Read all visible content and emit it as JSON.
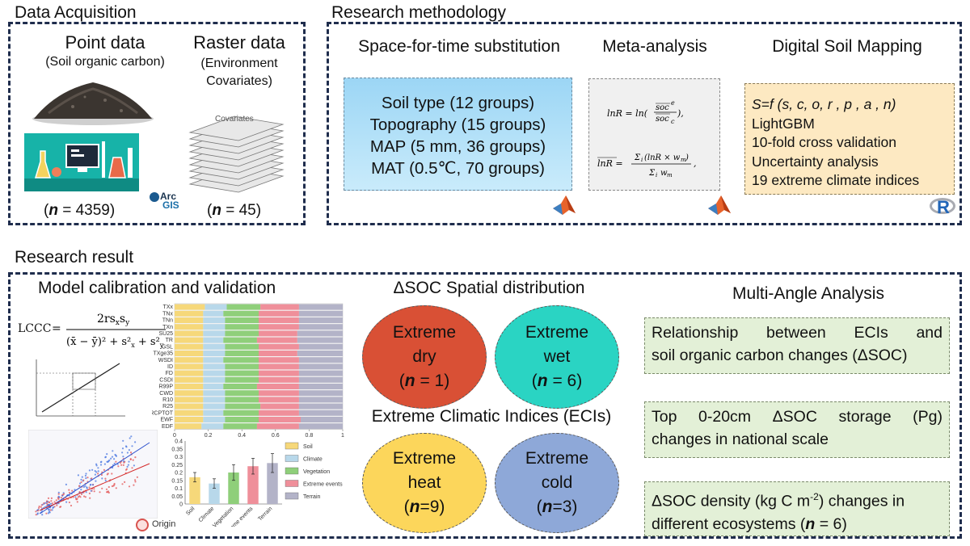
{
  "acquisition": {
    "title": "Data Acquisition",
    "point_title": "Point data",
    "point_sub": "(Soil organic carbon)",
    "point_n": "= 4359)",
    "raster_title": "Raster data",
    "raster_sub1": "(Environment",
    "raster_sub2": "Covariates)",
    "raster_n": "= 45)",
    "covariates_label": "Covariates",
    "arcgis_arc": "Arc",
    "arcgis_gis": "GIS"
  },
  "methodology": {
    "title": "Research methodology",
    "sft_title": "Space-for-time substitution",
    "sft_lines": [
      "Soil type (12 groups)",
      "Topography (15 groups)",
      "MAP (5 mm, 36 groups)",
      "MAT (0.5℃, 70 groups)"
    ],
    "meta_title": "Meta-analysis",
    "dsm_title": "Digital Soil Mapping",
    "dsm_formula": "S=f (s, c, o, r , p , a , n)",
    "dsm_lines": [
      "LightGBM",
      "10-fold cross validation",
      "Uncertainty analysis",
      "19 extreme climate indices"
    ],
    "r_logo": "R"
  },
  "result": {
    "title": "Research result",
    "model_title": "Model calibration and validation",
    "lccc_label": "LCCC",
    "origin_label": "Origin",
    "spatial_title": "ΔSOC Spatial distribution",
    "eci_title": "Extreme Climatic Indices (ECIs)",
    "circles": [
      {
        "l1": "Extreme",
        "l2": "dry",
        "n": "= 1)"
      },
      {
        "l1": "Extreme",
        "l2": "wet",
        "n": "= 6)"
      },
      {
        "l1": "Extreme",
        "l2": "heat",
        "n": "=9)"
      },
      {
        "l1": "Extreme",
        "l2": "cold",
        "n": "=3)"
      }
    ],
    "multi_title": "Multi-Angle Analysis",
    "boxes": [
      {
        "l1": "Relationship between ECIs and",
        "l2": "soil organic carbon changes (ΔSOC)"
      },
      {
        "l1": "Top 0-20cm ΔSOC storage (Pg)",
        "l2": "changes in national scale"
      },
      {
        "l1a": "ΔSOC density (kg C m",
        "sup": "-2",
        "l1b": ") changes in",
        "l2": "different ecosystems (",
        "n": "= 6)"
      }
    ]
  },
  "chart_data": [
    {
      "type": "bar",
      "orientation": "horizontal",
      "stacked": true,
      "categories": [
        "TXx",
        "TNx",
        "TNn",
        "TXn",
        "SU25",
        "TR",
        "GSL",
        "TXge35",
        "WSDI",
        "ID",
        "FD",
        "CSDI",
        "R99P",
        "CWD",
        "R10",
        "R25",
        "PRCPTOT",
        "EWF",
        "EDF"
      ],
      "series_names": [
        "Soil",
        "Climate",
        "Vegetation",
        "Extreme events",
        "Terrain"
      ],
      "series": [
        {
          "name": "Soil",
          "values": [
            0.18,
            0.17,
            0.17,
            0.17,
            0.17,
            0.17,
            0.17,
            0.17,
            0.17,
            0.17,
            0.17,
            0.17,
            0.17,
            0.17,
            0.17,
            0.17,
            0.17,
            0.17,
            0.16
          ]
        },
        {
          "name": "Climate",
          "values": [
            0.13,
            0.12,
            0.13,
            0.13,
            0.13,
            0.12,
            0.13,
            0.13,
            0.12,
            0.13,
            0.13,
            0.13,
            0.12,
            0.13,
            0.13,
            0.13,
            0.12,
            0.13,
            0.13
          ]
        },
        {
          "name": "Vegetation",
          "values": [
            0.2,
            0.21,
            0.2,
            0.2,
            0.2,
            0.2,
            0.2,
            0.2,
            0.21,
            0.2,
            0.2,
            0.2,
            0.2,
            0.2,
            0.2,
            0.21,
            0.21,
            0.2,
            0.2
          ]
        },
        {
          "name": "Extreme events",
          "values": [
            0.23,
            0.24,
            0.24,
            0.24,
            0.23,
            0.24,
            0.24,
            0.23,
            0.24,
            0.24,
            0.24,
            0.24,
            0.25,
            0.24,
            0.24,
            0.23,
            0.24,
            0.25,
            0.25
          ]
        },
        {
          "name": "Terrain",
          "values": [
            0.26,
            0.26,
            0.26,
            0.26,
            0.27,
            0.27,
            0.26,
            0.27,
            0.26,
            0.26,
            0.26,
            0.26,
            0.26,
            0.26,
            0.26,
            0.26,
            0.26,
            0.25,
            0.26
          ]
        }
      ],
      "xlim": [
        0,
        1
      ],
      "xticks": [
        0,
        0.2,
        0.4,
        0.6,
        0.8,
        1
      ]
    },
    {
      "type": "bar",
      "categories": [
        "Soil",
        "Climate",
        "Vegetation",
        "Extreme events",
        "Terrain"
      ],
      "values": [
        0.17,
        0.13,
        0.2,
        0.24,
        0.26
      ],
      "errors": [
        0.03,
        0.03,
        0.05,
        0.05,
        0.06
      ],
      "ylim": [
        0,
        0.4
      ],
      "yticks": [
        0,
        0.05,
        0.1,
        0.15,
        0.2,
        0.25,
        0.3,
        0.35,
        0.4
      ],
      "ytick_labels": [
        "0",
        "0.05",
        "0.1",
        "0.15",
        "0.2",
        "0.25",
        "0.3",
        "0.35",
        "0.4"
      ],
      "legend": [
        "Soil",
        "Climate",
        "Vegetation",
        "Extreme events",
        "Terrain"
      ],
      "legend_position": "right"
    }
  ],
  "colors": {
    "frame": "#1f2d4d",
    "soil": "#f6d87a",
    "climate": "#b8d8ea",
    "vegetation": "#8fcf7a",
    "extreme": "#ef8f9a",
    "terrain": "#b3b3c8",
    "dry": "#d95035",
    "wet": "#2ad4c3",
    "heat": "#fcd65b",
    "cold": "#8ea8d8",
    "green_box": "#e3f0d7",
    "dsm_box": "#fde9c2"
  }
}
